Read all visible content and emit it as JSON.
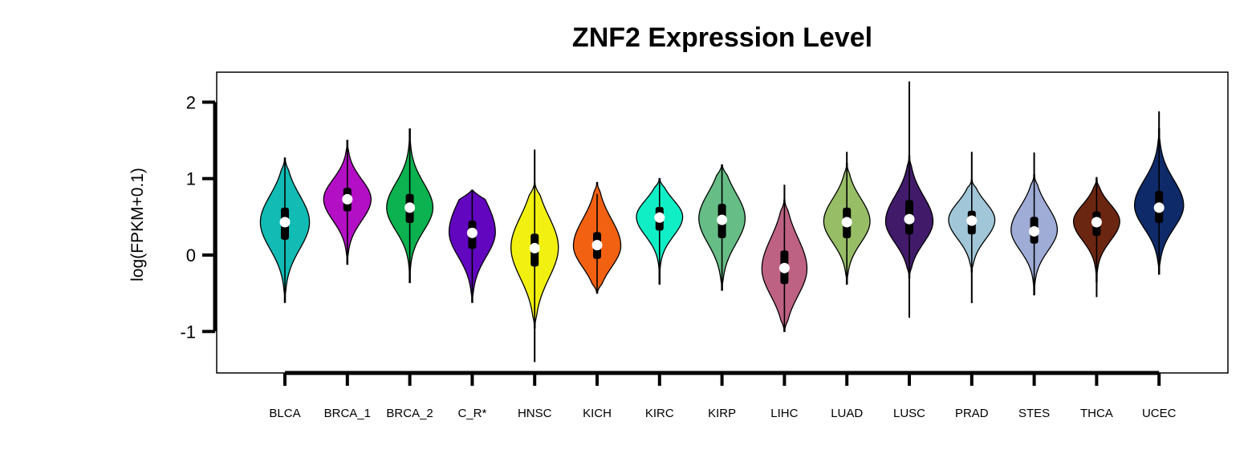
{
  "chart_data": {
    "type": "violin",
    "title": "ZNF2 Expression Level",
    "ylabel": "log(FPKM+0.1)",
    "xlabel": "",
    "ylim": [
      -1.5,
      2.4
    ],
    "yticks": [
      -1,
      0,
      1,
      2
    ],
    "ytick_labels": [
      "-1",
      "0",
      "1",
      "2"
    ],
    "grid": false,
    "legend": "none",
    "categories": [
      "BLCA",
      "BRCA_1",
      "BRCA_2",
      "C_R*",
      "HNSC",
      "KICH",
      "KIRC",
      "KIRP",
      "LIHC",
      "LUAD",
      "LUSC",
      "PRAD",
      "STES",
      "THCA",
      "UCEC"
    ],
    "series": [
      {
        "category": "BLCA",
        "color": "#12BBB4",
        "min": -0.62,
        "max": 1.27,
        "q1": 0.2,
        "median": 0.43,
        "q3": 0.62,
        "wlo": -0.5,
        "whi": 1.25,
        "mode": 0.43,
        "width": 0.85,
        "spreadLo": 0.35,
        "spreadHi": 0.35
      },
      {
        "category": "BRCA_1",
        "color": "#B30FC5",
        "min": -0.12,
        "max": 1.5,
        "q1": 0.57,
        "median": 0.73,
        "q3": 0.88,
        "wlo": -0.1,
        "whi": 1.5,
        "mode": 0.73,
        "width": 0.82,
        "spreadLo": 0.28,
        "spreadHi": 0.26
      },
      {
        "category": "BRCA_2",
        "color": "#0CB150",
        "min": -0.36,
        "max": 1.65,
        "q1": 0.42,
        "median": 0.62,
        "q3": 0.8,
        "wlo": -0.35,
        "whi": 1.65,
        "mode": 0.62,
        "width": 0.8,
        "spreadLo": 0.3,
        "spreadHi": 0.32
      },
      {
        "category": "C_R*",
        "color": "#6206C0",
        "min": -0.62,
        "max": 0.85,
        "q1": 0.08,
        "median": 0.29,
        "q3": 0.45,
        "wlo": -0.6,
        "whi": 0.84,
        "mode": 0.3,
        "width": 0.8,
        "spreadLo": 0.32,
        "spreadHi": 0.4
      },
      {
        "category": "HNSC",
        "color": "#F1F010",
        "min": -0.96,
        "max": 0.94,
        "q1": -0.15,
        "median": 0.09,
        "q3": 0.28,
        "wlo": -1.4,
        "whi": 1.38,
        "mode": 0.1,
        "width": 0.82,
        "spreadLo": 0.4,
        "spreadHi": 0.4
      },
      {
        "category": "KICH",
        "color": "#F26112",
        "min": -0.5,
        "max": 0.95,
        "q1": -0.05,
        "median": 0.13,
        "q3": 0.3,
        "wlo": -0.48,
        "whi": 0.8,
        "mode": 0.12,
        "width": 0.82,
        "spreadLo": 0.28,
        "spreadHi": 0.35
      },
      {
        "category": "KIRC",
        "color": "#10EEC6",
        "min": -0.38,
        "max": 1.0,
        "q1": 0.32,
        "median": 0.49,
        "q3": 0.63,
        "wlo": -0.37,
        "whi": 0.99,
        "mode": 0.5,
        "width": 0.8,
        "spreadLo": 0.25,
        "spreadHi": 0.22
      },
      {
        "category": "KIRP",
        "color": "#66BD85",
        "min": -0.46,
        "max": 1.18,
        "q1": 0.22,
        "median": 0.46,
        "q3": 0.67,
        "wlo": -0.45,
        "whi": 1.17,
        "mode": 0.48,
        "width": 0.8,
        "spreadLo": 0.33,
        "spreadHi": 0.33
      },
      {
        "category": "LIHC",
        "color": "#BE6283",
        "min": -1.0,
        "max": 0.72,
        "q1": -0.38,
        "median": -0.17,
        "q3": 0.06,
        "wlo": -0.98,
        "whi": 0.92,
        "mode": -0.18,
        "width": 0.78,
        "spreadLo": 0.35,
        "spreadHi": 0.4
      },
      {
        "category": "LUAD",
        "color": "#97BD66",
        "min": -0.38,
        "max": 1.2,
        "q1": 0.22,
        "median": 0.43,
        "q3": 0.62,
        "wlo": -0.37,
        "whi": 1.35,
        "mode": 0.44,
        "width": 0.8,
        "spreadLo": 0.28,
        "spreadHi": 0.3
      },
      {
        "category": "LUSC",
        "color": "#411A6A",
        "min": -0.3,
        "max": 1.3,
        "q1": 0.27,
        "median": 0.47,
        "q3": 0.72,
        "wlo": -0.82,
        "whi": 2.27,
        "mode": 0.44,
        "width": 0.82,
        "spreadLo": 0.28,
        "spreadHi": 0.33
      },
      {
        "category": "PRAD",
        "color": "#A0C6D8",
        "min": -0.22,
        "max": 0.98,
        "q1": 0.27,
        "median": 0.45,
        "q3": 0.58,
        "wlo": -0.63,
        "whi": 1.35,
        "mode": 0.46,
        "width": 0.8,
        "spreadLo": 0.25,
        "spreadHi": 0.23
      },
      {
        "category": "STES",
        "color": "#9EACD6",
        "min": -0.52,
        "max": 1.05,
        "q1": 0.15,
        "median": 0.31,
        "q3": 0.5,
        "wlo": -0.5,
        "whi": 1.34,
        "mode": 0.33,
        "width": 0.8,
        "spreadLo": 0.27,
        "spreadHi": 0.3
      },
      {
        "category": "THCA",
        "color": "#6B2612",
        "min": -0.35,
        "max": 1.0,
        "q1": 0.25,
        "median": 0.43,
        "q3": 0.57,
        "wlo": -0.55,
        "whi": 1.02,
        "mode": 0.44,
        "width": 0.8,
        "spreadLo": 0.25,
        "spreadHi": 0.22
      },
      {
        "category": "UCEC",
        "color": "#0E2A69",
        "min": -0.25,
        "max": 1.65,
        "q1": 0.42,
        "median": 0.62,
        "q3": 0.84,
        "wlo": -0.25,
        "whi": 1.88,
        "mode": 0.65,
        "width": 0.85,
        "spreadLo": 0.3,
        "spreadHi": 0.33
      }
    ]
  }
}
